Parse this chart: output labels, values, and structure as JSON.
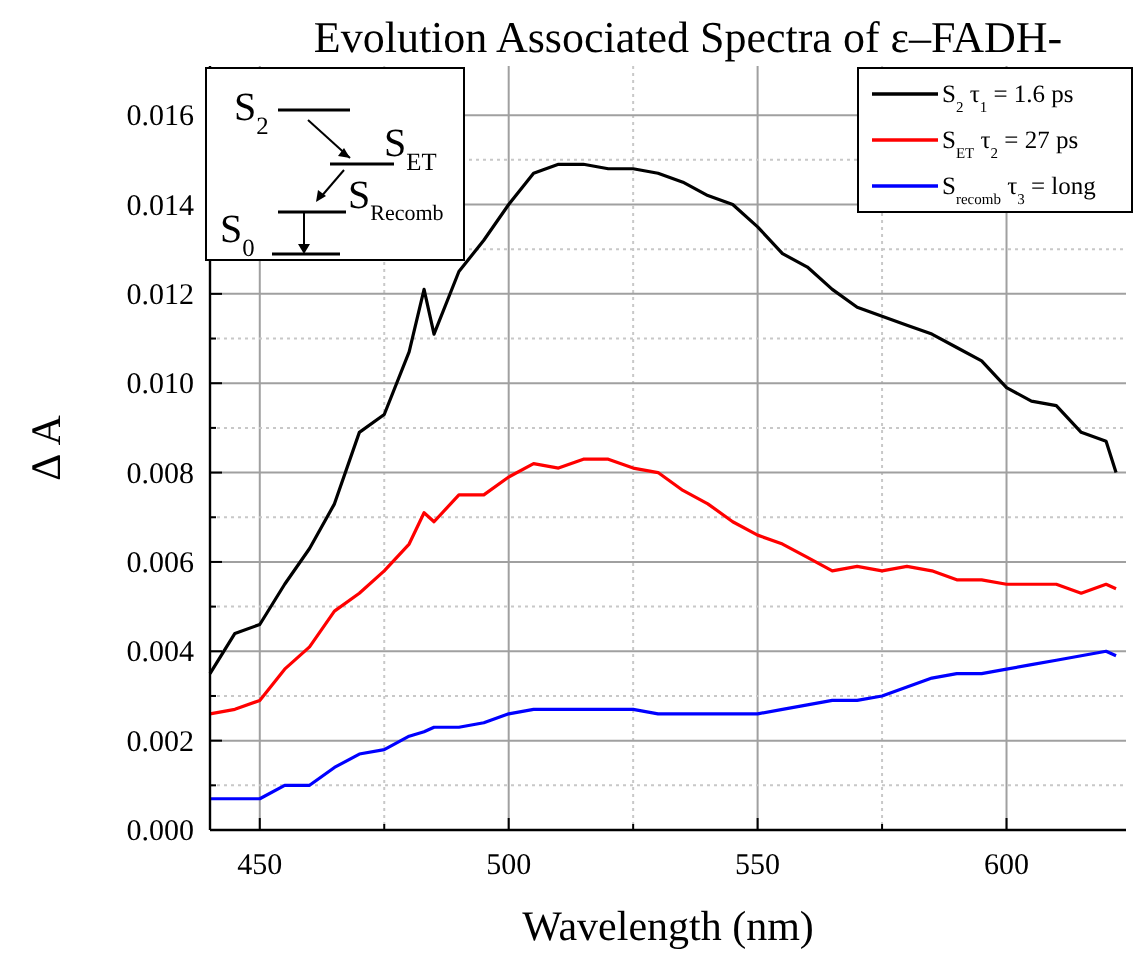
{
  "chart_data": {
    "type": "line",
    "title": "Evolution Associated Spectra of ε–FADH-",
    "xlabel": "Wavelength (nm)",
    "ylabel": "Δ A",
    "xlim": [
      440,
      624
    ],
    "ylim": [
      0,
      0.0171
    ],
    "xticks": [
      450,
      {
        "value": 475,
        "label": null
      },
      500,
      {
        "value": 525,
        "label": null
      },
      550,
      {
        "value": 575,
        "label": null
      },
      600
    ],
    "yticks": [
      {
        "value": 0,
        "label": "0.000"
      },
      {
        "value": 0.001,
        "label": null
      },
      {
        "value": 0.002,
        "label": "0.002"
      },
      {
        "value": 0.003,
        "label": null
      },
      {
        "value": 0.004,
        "label": "0.004"
      },
      {
        "value": 0.005,
        "label": null
      },
      {
        "value": 0.006,
        "label": "0.006"
      },
      {
        "value": 0.007,
        "label": null
      },
      {
        "value": 0.008,
        "label": "0.008"
      },
      {
        "value": 0.009,
        "label": null
      },
      {
        "value": 0.01,
        "label": "0.010"
      },
      {
        "value": 0.011,
        "label": null
      },
      {
        "value": 0.012,
        "label": "0.012"
      },
      {
        "value": 0.013,
        "label": null
      },
      {
        "value": 0.014,
        "label": "0.014"
      },
      {
        "value": 0.015,
        "label": null
      },
      {
        "value": 0.016,
        "label": "0.016"
      }
    ],
    "grid": true,
    "legend": "top right",
    "line_style": "solid",
    "x": [
      440,
      445,
      450,
      455,
      460,
      465,
      470,
      475,
      480,
      483,
      485,
      490,
      495,
      500,
      505,
      510,
      515,
      520,
      525,
      530,
      535,
      540,
      545,
      550,
      555,
      560,
      565,
      570,
      575,
      580,
      585,
      590,
      595,
      600,
      605,
      610,
      615,
      620,
      622
    ],
    "series": [
      {
        "name": "S$_{2}$ τ$_{1}$ = 1.6 ps",
        "color": "#000000",
        "values": [
          0.0035,
          0.0044,
          0.0046,
          0.0055,
          0.0063,
          0.0073,
          0.0089,
          0.0093,
          0.0107,
          0.0121,
          0.0111,
          0.0125,
          0.0132,
          0.014,
          0.0147,
          0.0149,
          0.0149,
          0.0148,
          0.0148,
          0.0147,
          0.0145,
          0.0142,
          0.014,
          0.0135,
          0.0129,
          0.0126,
          0.0121,
          0.0117,
          0.0115,
          0.0113,
          0.0111,
          0.0108,
          0.0105,
          0.0099,
          0.0096,
          0.0095,
          0.0089,
          0.0087,
          0.008
        ]
      },
      {
        "name": "S$_{ET}$ τ$_{2}$ = 27 ps",
        "color": "#ff0000",
        "values": [
          0.0026,
          0.0027,
          0.0029,
          0.0036,
          0.0041,
          0.0049,
          0.0053,
          0.0058,
          0.0064,
          0.0071,
          0.0069,
          0.0075,
          0.0075,
          0.0079,
          0.0082,
          0.0081,
          0.0083,
          0.0083,
          0.0081,
          0.008,
          0.0076,
          0.0073,
          0.0069,
          0.0066,
          0.0064,
          0.0061,
          0.0058,
          0.0059,
          0.0058,
          0.0059,
          0.0058,
          0.0056,
          0.0056,
          0.0055,
          0.0055,
          0.0055,
          0.0053,
          0.0055,
          0.0054
        ]
      },
      {
        "name": "S$_{recomb}$ τ$_{3}$ = long",
        "color": "#0000ff",
        "values": [
          0.0007,
          0.0007,
          0.0007,
          0.001,
          0.001,
          0.0014,
          0.0017,
          0.0018,
          0.0021,
          0.0022,
          0.0023,
          0.0023,
          0.0024,
          0.0026,
          0.0027,
          0.0027,
          0.0027,
          0.0027,
          0.0027,
          0.0026,
          0.0026,
          0.0026,
          0.0026,
          0.0026,
          0.0027,
          0.0028,
          0.0029,
          0.0029,
          0.003,
          0.0032,
          0.0034,
          0.0035,
          0.0035,
          0.0036,
          0.0037,
          0.0038,
          0.0039,
          0.004,
          0.0039
        ]
      }
    ],
    "annotations": [
      "S$_{2}$",
      "S$_{ET}$",
      "S$_{Recomb}$",
      "S$_{0}$"
    ]
  }
}
